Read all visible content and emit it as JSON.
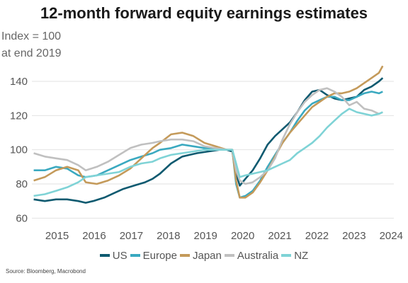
{
  "chart_data": {
    "type": "line",
    "title": "12-month forward equity earnings estimates",
    "ylabel": "Index = 100\nat end 2019",
    "xlabel": "",
    "source": "Source: Bloomberg, Macrobond",
    "ylim": [
      56,
      152
    ],
    "xlim": [
      2014.55,
      2024.3
    ],
    "yticks": [
      60,
      80,
      100,
      120,
      140
    ],
    "xticks": [
      2015,
      2016,
      2017,
      2018,
      2019,
      2020,
      2021,
      2022,
      2023,
      2024
    ],
    "grid": true,
    "legend_position": "bottom",
    "series": [
      {
        "name": "US",
        "color": "#0e5a70",
        "x": [
          2014.6,
          2014.9,
          2015.2,
          2015.5,
          2015.8,
          2016.0,
          2016.2,
          2016.5,
          2016.8,
          2017.0,
          2017.3,
          2017.6,
          2017.8,
          2018.0,
          2018.3,
          2018.6,
          2018.8,
          2019.0,
          2019.3,
          2019.6,
          2019.8,
          2019.95,
          2020.05,
          2020.15,
          2020.3,
          2020.5,
          2020.7,
          2020.9,
          2021.1,
          2021.3,
          2021.5,
          2021.7,
          2021.9,
          2022.1,
          2022.3,
          2022.5,
          2022.7,
          2022.9,
          2023.1,
          2023.3,
          2023.5,
          2023.7,
          2023.9,
          2024.0
        ],
        "y": [
          71,
          70,
          71,
          71,
          70,
          69,
          70,
          72,
          75,
          77,
          79,
          81,
          83,
          86,
          92,
          96,
          97,
          98,
          99,
          100,
          100,
          99,
          86,
          79,
          83,
          88,
          95,
          103,
          108,
          112,
          116,
          122,
          129,
          134,
          135,
          132,
          130,
          129,
          130,
          131,
          135,
          137,
          140,
          142
        ]
      },
      {
        "name": "Europe",
        "color": "#3aa9c0",
        "x": [
          2014.6,
          2014.9,
          2015.2,
          2015.5,
          2015.8,
          2016.0,
          2016.3,
          2016.6,
          2016.9,
          2017.2,
          2017.5,
          2017.8,
          2018.0,
          2018.3,
          2018.6,
          2018.9,
          2019.2,
          2019.5,
          2019.8,
          2019.95,
          2020.05,
          2020.15,
          2020.3,
          2020.5,
          2020.7,
          2020.9,
          2021.1,
          2021.3,
          2021.5,
          2021.7,
          2021.9,
          2022.1,
          2022.3,
          2022.5,
          2022.7,
          2022.9,
          2023.1,
          2023.3,
          2023.5,
          2023.7,
          2023.9,
          2024.0
        ],
        "y": [
          88,
          88,
          90,
          89,
          85,
          84,
          85,
          88,
          91,
          94,
          96,
          98,
          100,
          101,
          103,
          102,
          101,
          101,
          100,
          100,
          80,
          72,
          73,
          76,
          82,
          90,
          97,
          104,
          110,
          117,
          123,
          127,
          129,
          131,
          131,
          129,
          129,
          131,
          133,
          134,
          133,
          134
        ]
      },
      {
        "name": "Japan",
        "color": "#c49a5a",
        "x": [
          2014.6,
          2014.9,
          2015.2,
          2015.5,
          2015.8,
          2016.0,
          2016.3,
          2016.6,
          2016.9,
          2017.2,
          2017.5,
          2017.8,
          2018.0,
          2018.3,
          2018.6,
          2018.9,
          2019.2,
          2019.5,
          2019.8,
          2019.95,
          2020.05,
          2020.15,
          2020.3,
          2020.5,
          2020.7,
          2020.9,
          2021.1,
          2021.3,
          2021.5,
          2021.7,
          2021.9,
          2022.1,
          2022.3,
          2022.5,
          2022.7,
          2022.9,
          2023.1,
          2023.3,
          2023.5,
          2023.7,
          2023.9,
          2024.0
        ],
        "y": [
          82,
          84,
          88,
          90,
          88,
          81,
          80,
          82,
          85,
          89,
          95,
          101,
          104,
          109,
          110,
          108,
          104,
          102,
          100,
          100,
          82,
          72,
          72,
          75,
          81,
          88,
          96,
          104,
          110,
          115,
          120,
          125,
          128,
          131,
          133,
          133,
          134,
          136,
          139,
          142,
          145,
          149
        ]
      },
      {
        "name": "Australia",
        "color": "#c0c0c0",
        "x": [
          2014.6,
          2014.9,
          2015.2,
          2015.5,
          2015.8,
          2016.0,
          2016.3,
          2016.6,
          2016.9,
          2017.2,
          2017.5,
          2017.8,
          2018.0,
          2018.3,
          2018.6,
          2018.9,
          2019.2,
          2019.5,
          2019.8,
          2019.95,
          2020.05,
          2020.15,
          2020.3,
          2020.5,
          2020.7,
          2020.9,
          2021.1,
          2021.3,
          2021.5,
          2021.7,
          2021.9,
          2022.1,
          2022.3,
          2022.5,
          2022.7,
          2022.9,
          2023.1,
          2023.3,
          2023.5,
          2023.7,
          2023.9,
          2024.0
        ],
        "y": [
          98,
          96,
          95,
          94,
          91,
          88,
          90,
          93,
          97,
          101,
          103,
          104,
          105,
          106,
          106,
          105,
          102,
          101,
          100,
          100,
          88,
          82,
          80,
          81,
          84,
          88,
          95,
          106,
          115,
          122,
          128,
          132,
          135,
          136,
          134,
          131,
          126,
          128,
          124,
          123,
          121,
          122
        ]
      },
      {
        "name": "NZ",
        "color": "#7fd3d6",
        "x": [
          2014.6,
          2014.9,
          2015.2,
          2015.5,
          2015.8,
          2016.0,
          2016.3,
          2016.6,
          2016.9,
          2017.2,
          2017.5,
          2017.8,
          2018.0,
          2018.3,
          2018.6,
          2018.9,
          2019.2,
          2019.5,
          2019.8,
          2019.95,
          2020.05,
          2020.15,
          2020.3,
          2020.5,
          2020.7,
          2020.9,
          2021.1,
          2021.3,
          2021.5,
          2021.7,
          2021.9,
          2022.1,
          2022.3,
          2022.5,
          2022.7,
          2022.9,
          2023.1,
          2023.3,
          2023.5,
          2023.7,
          2023.9,
          2024.0
        ],
        "y": [
          73,
          74,
          76,
          78,
          81,
          84,
          85,
          86,
          87,
          90,
          92,
          93,
          95,
          97,
          98,
          99,
          100,
          100,
          100,
          100,
          92,
          84,
          85,
          86,
          87,
          88,
          90,
          92,
          94,
          98,
          101,
          104,
          108,
          113,
          117,
          121,
          124,
          122,
          121,
          120,
          121,
          122
        ]
      }
    ]
  }
}
